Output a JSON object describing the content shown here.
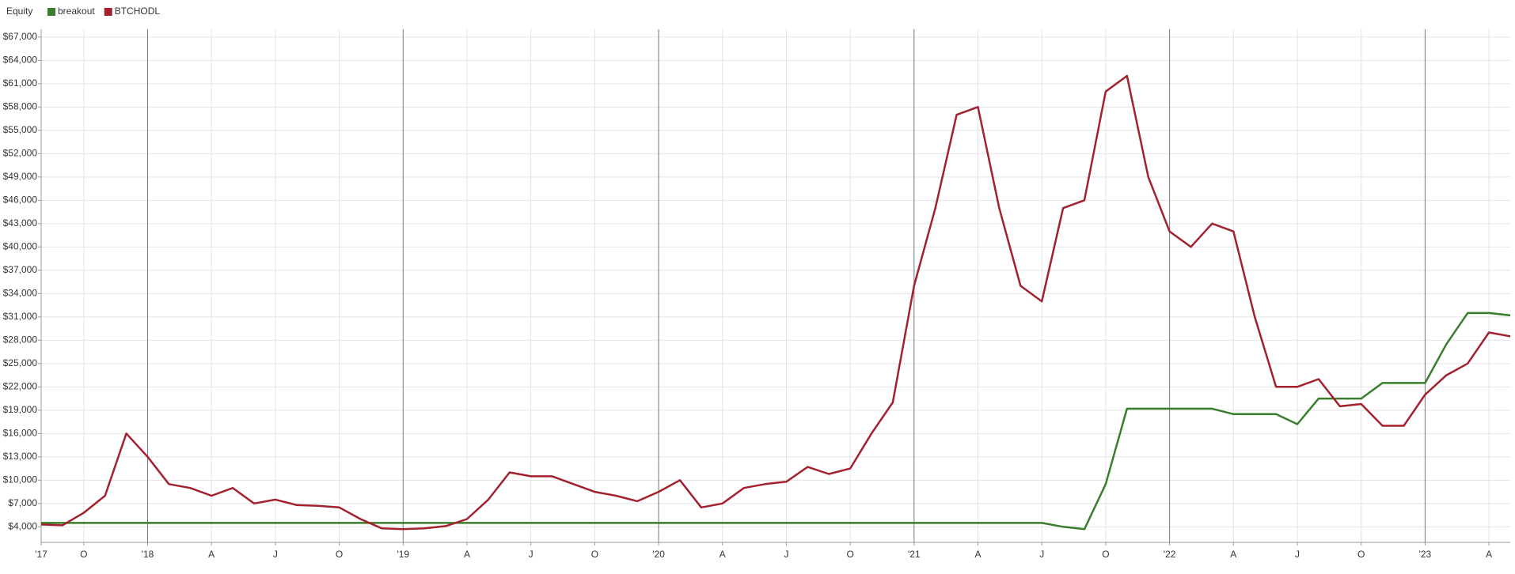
{
  "chart_data": {
    "type": "line",
    "legend_title": "Equity",
    "x": [
      "2017-08",
      "2017-09",
      "2017-10",
      "2017-11",
      "2017-12",
      "2018-01",
      "2018-02",
      "2018-03",
      "2018-04",
      "2018-05",
      "2018-06",
      "2018-07",
      "2018-08",
      "2018-09",
      "2018-10",
      "2018-11",
      "2018-12",
      "2019-01",
      "2019-02",
      "2019-03",
      "2019-04",
      "2019-05",
      "2019-06",
      "2019-07",
      "2019-08",
      "2019-09",
      "2019-10",
      "2019-11",
      "2019-12",
      "2020-01",
      "2020-02",
      "2020-03",
      "2020-04",
      "2020-05",
      "2020-06",
      "2020-07",
      "2020-08",
      "2020-09",
      "2020-10",
      "2020-11",
      "2020-12",
      "2021-01",
      "2021-02",
      "2021-03",
      "2021-04",
      "2021-05",
      "2021-06",
      "2021-07",
      "2021-08",
      "2021-09",
      "2021-10",
      "2021-11",
      "2021-12",
      "2022-01",
      "2022-02",
      "2022-03",
      "2022-04",
      "2022-05",
      "2022-06",
      "2022-07",
      "2022-08",
      "2022-09",
      "2022-10",
      "2022-11",
      "2022-12",
      "2023-01",
      "2023-02",
      "2023-03",
      "2023-04",
      "2023-05"
    ],
    "series": [
      {
        "name": "breakout",
        "color": "#3a7d2c",
        "values": [
          4500,
          4500,
          4500,
          4500,
          4500,
          4500,
          4500,
          4500,
          4500,
          4500,
          4500,
          4500,
          4500,
          4500,
          4500,
          4500,
          4500,
          4500,
          4500,
          4500,
          4500,
          4500,
          4500,
          4500,
          4500,
          4500,
          4500,
          4500,
          4500,
          4500,
          4500,
          4500,
          4500,
          4500,
          4500,
          4500,
          4500,
          4500,
          4500,
          4500,
          4500,
          4500,
          4500,
          4500,
          4500,
          4500,
          4500,
          4500,
          4000,
          3700,
          9500,
          19200,
          19200,
          19200,
          19200,
          19200,
          18500,
          18500,
          18500,
          17200,
          20500,
          20500,
          20500,
          22500,
          22500,
          22500,
          27500,
          31500,
          31500,
          31200
        ]
      },
      {
        "name": "BTCHODL",
        "color": "#a3212f",
        "values": [
          4300,
          4200,
          5800,
          8000,
          16000,
          13000,
          9500,
          9000,
          8000,
          9000,
          7000,
          7500,
          6800,
          6700,
          6500,
          5000,
          3800,
          3700,
          3800,
          4100,
          5000,
          7500,
          11000,
          10500,
          10500,
          9500,
          8500,
          8000,
          7300,
          8500,
          10000,
          6500,
          7000,
          9000,
          9500,
          9800,
          11700,
          10800,
          11500,
          16000,
          20000,
          35000,
          45000,
          57000,
          58000,
          45000,
          35000,
          33000,
          45000,
          46000,
          60000,
          62000,
          49000,
          42000,
          40000,
          43000,
          42000,
          31000,
          22000,
          22000,
          23000,
          19500,
          19800,
          17000,
          17000,
          21000,
          23500,
          25000,
          29000,
          28500
        ]
      }
    ],
    "xlim": [
      "2017-08",
      "2023-05"
    ],
    "xticks": [
      {
        "value": "2017-08",
        "label": "'17"
      },
      {
        "value": "2017-10",
        "label": "O"
      },
      {
        "value": "2018-01",
        "label": "'18"
      },
      {
        "value": "2018-04",
        "label": "A"
      },
      {
        "value": "2018-07",
        "label": "J"
      },
      {
        "value": "2018-10",
        "label": "O"
      },
      {
        "value": "2019-01",
        "label": "'19"
      },
      {
        "value": "2019-04",
        "label": "A"
      },
      {
        "value": "2019-07",
        "label": "J"
      },
      {
        "value": "2019-10",
        "label": "O"
      },
      {
        "value": "2020-01",
        "label": "'20"
      },
      {
        "value": "2020-04",
        "label": "A"
      },
      {
        "value": "2020-07",
        "label": "J"
      },
      {
        "value": "2020-10",
        "label": "O"
      },
      {
        "value": "2021-01",
        "label": "'21"
      },
      {
        "value": "2021-04",
        "label": "A"
      },
      {
        "value": "2021-07",
        "label": "J"
      },
      {
        "value": "2021-10",
        "label": "O"
      },
      {
        "value": "2022-01",
        "label": "'22"
      },
      {
        "value": "2022-04",
        "label": "A"
      },
      {
        "value": "2022-07",
        "label": "J"
      },
      {
        "value": "2022-10",
        "label": "O"
      },
      {
        "value": "2023-01",
        "label": "'23"
      },
      {
        "value": "2023-04",
        "label": "A"
      }
    ],
    "ylim": [
      2000,
      68000
    ],
    "yticks": [
      {
        "value": 4000,
        "label": "$4,000"
      },
      {
        "value": 7000,
        "label": "$7,000"
      },
      {
        "value": 10000,
        "label": "$10,000"
      },
      {
        "value": 13000,
        "label": "$13,000"
      },
      {
        "value": 16000,
        "label": "$16,000"
      },
      {
        "value": 19000,
        "label": "$19,000"
      },
      {
        "value": 22000,
        "label": "$22,000"
      },
      {
        "value": 25000,
        "label": "$25,000"
      },
      {
        "value": 28000,
        "label": "$28,000"
      },
      {
        "value": 31000,
        "label": "$31,000"
      },
      {
        "value": 34000,
        "label": "$34,000"
      },
      {
        "value": 37000,
        "label": "$37,000"
      },
      {
        "value": 40000,
        "label": "$40,000"
      },
      {
        "value": 43000,
        "label": "$43,000"
      },
      {
        "value": 46000,
        "label": "$46,000"
      },
      {
        "value": 49000,
        "label": "$49,000"
      },
      {
        "value": 52000,
        "label": "$52,000"
      },
      {
        "value": 55000,
        "label": "$55,000"
      },
      {
        "value": 58000,
        "label": "$58,000"
      },
      {
        "value": 61000,
        "label": "$61,000"
      },
      {
        "value": 64000,
        "label": "$64,000"
      },
      {
        "value": 67000,
        "label": "$67,000"
      }
    ],
    "grid": true
  }
}
